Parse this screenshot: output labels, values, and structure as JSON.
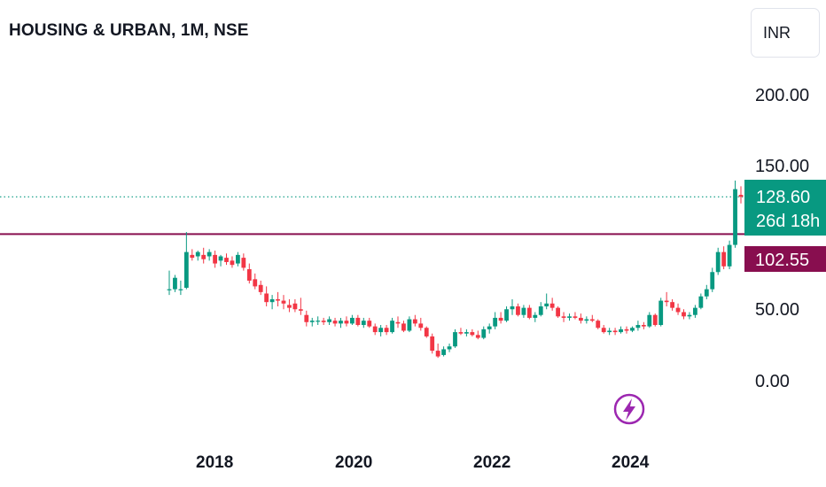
{
  "header": {
    "title": "HOUSING & URBAN, 1M, NSE",
    "currency": "INR"
  },
  "colors": {
    "up": "#089981",
    "down": "#f23645",
    "level_line": "#880e4f",
    "event_icon": "#9c27b0"
  },
  "icons": {
    "event": "lightning-icon"
  },
  "chart_data": {
    "type": "candlestick",
    "interval": "1M",
    "x_ticks": [
      "2018",
      "2020",
      "2022",
      "2024"
    ],
    "y_ticks": [
      "200.00",
      "150.00",
      "50.00",
      "0.00"
    ],
    "ylim": [
      -10,
      225
    ],
    "last_price": {
      "value": 128.6,
      "label": "128.60",
      "countdown": "26d 18h"
    },
    "level": {
      "value": 102.55,
      "label": "102.55"
    },
    "first_month": "2017-04",
    "candles": [
      {
        "o": 64,
        "h": 77,
        "l": 60,
        "c": 64
      },
      {
        "o": 64,
        "h": 74,
        "l": 62,
        "c": 72
      },
      {
        "o": 64,
        "h": 70,
        "l": 60,
        "c": 64
      },
      {
        "o": 65,
        "h": 104,
        "l": 64,
        "c": 90
      },
      {
        "o": 88,
        "h": 92,
        "l": 84,
        "c": 86
      },
      {
        "o": 87,
        "h": 91,
        "l": 84,
        "c": 90
      },
      {
        "o": 88,
        "h": 93,
        "l": 82,
        "c": 85
      },
      {
        "o": 87,
        "h": 92,
        "l": 84,
        "c": 90
      },
      {
        "o": 88,
        "h": 91,
        "l": 79,
        "c": 82
      },
      {
        "o": 84,
        "h": 88,
        "l": 80,
        "c": 87
      },
      {
        "o": 86,
        "h": 89,
        "l": 81,
        "c": 83
      },
      {
        "o": 84,
        "h": 87,
        "l": 79,
        "c": 81
      },
      {
        "o": 82,
        "h": 90,
        "l": 80,
        "c": 88
      },
      {
        "o": 86,
        "h": 89,
        "l": 77,
        "c": 79
      },
      {
        "o": 78,
        "h": 82,
        "l": 68,
        "c": 70
      },
      {
        "o": 71,
        "h": 75,
        "l": 64,
        "c": 66
      },
      {
        "o": 67,
        "h": 70,
        "l": 60,
        "c": 62
      },
      {
        "o": 61,
        "h": 66,
        "l": 52,
        "c": 55
      },
      {
        "o": 55,
        "h": 60,
        "l": 50,
        "c": 57
      },
      {
        "o": 57,
        "h": 62,
        "l": 52,
        "c": 56
      },
      {
        "o": 56,
        "h": 60,
        "l": 50,
        "c": 54
      },
      {
        "o": 53,
        "h": 57,
        "l": 48,
        "c": 51
      },
      {
        "o": 54,
        "h": 57,
        "l": 48,
        "c": 50
      },
      {
        "o": 50,
        "h": 58,
        "l": 46,
        "c": 49
      },
      {
        "o": 46,
        "h": 49,
        "l": 38,
        "c": 41
      },
      {
        "o": 41,
        "h": 44,
        "l": 38,
        "c": 42
      },
      {
        "o": 42,
        "h": 45,
        "l": 39,
        "c": 42
      },
      {
        "o": 42,
        "h": 44,
        "l": 39,
        "c": 41
      },
      {
        "o": 41,
        "h": 45,
        "l": 39,
        "c": 43
      },
      {
        "o": 42,
        "h": 44,
        "l": 38,
        "c": 40
      },
      {
        "o": 40,
        "h": 44,
        "l": 37,
        "c": 42
      },
      {
        "o": 42,
        "h": 45,
        "l": 38,
        "c": 40
      },
      {
        "o": 40,
        "h": 46,
        "l": 39,
        "c": 44
      },
      {
        "o": 44,
        "h": 46,
        "l": 38,
        "c": 39
      },
      {
        "o": 39,
        "h": 44,
        "l": 37,
        "c": 42
      },
      {
        "o": 42,
        "h": 44,
        "l": 37,
        "c": 38
      },
      {
        "o": 38,
        "h": 40,
        "l": 32,
        "c": 34
      },
      {
        "o": 34,
        "h": 39,
        "l": 31,
        "c": 37
      },
      {
        "o": 37,
        "h": 39,
        "l": 32,
        "c": 34
      },
      {
        "o": 34,
        "h": 44,
        "l": 33,
        "c": 42
      },
      {
        "o": 41,
        "h": 45,
        "l": 37,
        "c": 40
      },
      {
        "o": 40,
        "h": 42,
        "l": 34,
        "c": 35
      },
      {
        "o": 35,
        "h": 45,
        "l": 34,
        "c": 43
      },
      {
        "o": 43,
        "h": 46,
        "l": 38,
        "c": 40
      },
      {
        "o": 40,
        "h": 44,
        "l": 35,
        "c": 37
      },
      {
        "o": 37,
        "h": 38,
        "l": 30,
        "c": 31
      },
      {
        "o": 31,
        "h": 33,
        "l": 19,
        "c": 21
      },
      {
        "o": 21,
        "h": 26,
        "l": 16,
        "c": 17
      },
      {
        "o": 18,
        "h": 24,
        "l": 17,
        "c": 22
      },
      {
        "o": 22,
        "h": 26,
        "l": 20,
        "c": 24
      },
      {
        "o": 24,
        "h": 36,
        "l": 23,
        "c": 34
      },
      {
        "o": 34,
        "h": 37,
        "l": 32,
        "c": 33
      },
      {
        "o": 33,
        "h": 36,
        "l": 31,
        "c": 34
      },
      {
        "o": 34,
        "h": 36,
        "l": 31,
        "c": 32
      },
      {
        "o": 32,
        "h": 35,
        "l": 29,
        "c": 30
      },
      {
        "o": 30,
        "h": 38,
        "l": 29,
        "c": 36
      },
      {
        "o": 36,
        "h": 40,
        "l": 33,
        "c": 38
      },
      {
        "o": 38,
        "h": 48,
        "l": 36,
        "c": 44
      },
      {
        "o": 44,
        "h": 48,
        "l": 40,
        "c": 42
      },
      {
        "o": 42,
        "h": 52,
        "l": 41,
        "c": 50
      },
      {
        "o": 50,
        "h": 57,
        "l": 46,
        "c": 52
      },
      {
        "o": 52,
        "h": 54,
        "l": 45,
        "c": 46
      },
      {
        "o": 46,
        "h": 53,
        "l": 44,
        "c": 51
      },
      {
        "o": 51,
        "h": 53,
        "l": 43,
        "c": 44
      },
      {
        "o": 44,
        "h": 48,
        "l": 41,
        "c": 46
      },
      {
        "o": 46,
        "h": 55,
        "l": 45,
        "c": 52
      },
      {
        "o": 52,
        "h": 61,
        "l": 50,
        "c": 54
      },
      {
        "o": 54,
        "h": 58,
        "l": 49,
        "c": 51
      },
      {
        "o": 51,
        "h": 52,
        "l": 44,
        "c": 45
      },
      {
        "o": 45,
        "h": 48,
        "l": 41,
        "c": 44
      },
      {
        "o": 44,
        "h": 47,
        "l": 42,
        "c": 45
      },
      {
        "o": 45,
        "h": 48,
        "l": 43,
        "c": 44
      },
      {
        "o": 44,
        "h": 47,
        "l": 40,
        "c": 42
      },
      {
        "o": 42,
        "h": 45,
        "l": 40,
        "c": 43
      },
      {
        "o": 43,
        "h": 46,
        "l": 41,
        "c": 42
      },
      {
        "o": 42,
        "h": 43,
        "l": 36,
        "c": 37
      },
      {
        "o": 37,
        "h": 39,
        "l": 33,
        "c": 34
      },
      {
        "o": 34,
        "h": 37,
        "l": 32,
        "c": 35
      },
      {
        "o": 35,
        "h": 37,
        "l": 32,
        "c": 34
      },
      {
        "o": 34,
        "h": 38,
        "l": 33,
        "c": 36
      },
      {
        "o": 36,
        "h": 38,
        "l": 33,
        "c": 35
      },
      {
        "o": 35,
        "h": 38,
        "l": 34,
        "c": 37
      },
      {
        "o": 37,
        "h": 42,
        "l": 35,
        "c": 39
      },
      {
        "o": 39,
        "h": 41,
        "l": 36,
        "c": 38
      },
      {
        "o": 38,
        "h": 48,
        "l": 37,
        "c": 46
      },
      {
        "o": 46,
        "h": 47,
        "l": 38,
        "c": 39
      },
      {
        "o": 39,
        "h": 58,
        "l": 38,
        "c": 56
      },
      {
        "o": 56,
        "h": 62,
        "l": 52,
        "c": 55
      },
      {
        "o": 55,
        "h": 57,
        "l": 49,
        "c": 51
      },
      {
        "o": 51,
        "h": 54,
        "l": 46,
        "c": 48
      },
      {
        "o": 48,
        "h": 50,
        "l": 43,
        "c": 45
      },
      {
        "o": 45,
        "h": 48,
        "l": 43,
        "c": 46
      },
      {
        "o": 46,
        "h": 53,
        "l": 44,
        "c": 51
      },
      {
        "o": 51,
        "h": 61,
        "l": 50,
        "c": 59
      },
      {
        "o": 59,
        "h": 67,
        "l": 57,
        "c": 64
      },
      {
        "o": 64,
        "h": 79,
        "l": 62,
        "c": 76
      },
      {
        "o": 76,
        "h": 93,
        "l": 74,
        "c": 90
      },
      {
        "o": 90,
        "h": 94,
        "l": 78,
        "c": 80
      },
      {
        "o": 80,
        "h": 98,
        "l": 78,
        "c": 95
      },
      {
        "o": 95,
        "h": 140,
        "l": 93,
        "c": 134
      },
      {
        "o": 130,
        "h": 136,
        "l": 124,
        "c": 128.6
      }
    ]
  }
}
